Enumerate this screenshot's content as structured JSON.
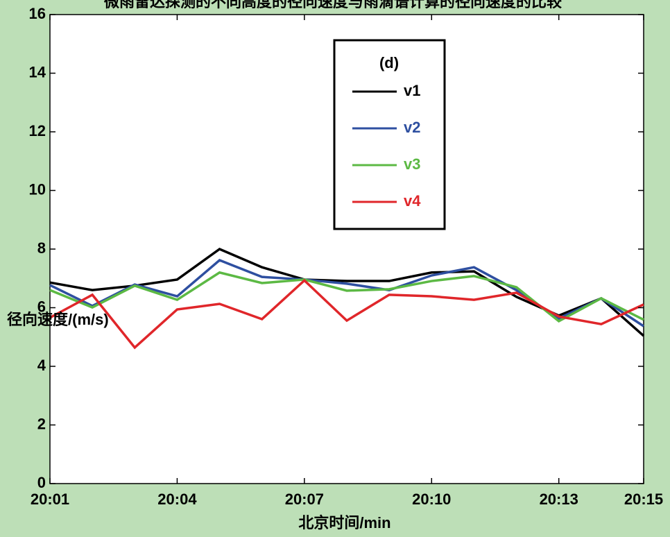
{
  "chart_data": {
    "type": "line",
    "title": "微雨雷达探测的不同高度的径向速度与雨滴谱计算的径向速度的比较",
    "x_label": "北京时间/min",
    "y_label": "径向速度/(m/s)",
    "legend_title": "(d)",
    "categories": [
      "20:01",
      null,
      null,
      "20:04",
      null,
      null,
      "20:07",
      null,
      null,
      "20:10",
      null,
      null,
      "20:13",
      null,
      "20:15"
    ],
    "series": [
      {
        "name": "v1",
        "color": "#000000",
        "values": [
          6.86,
          6.6,
          6.75,
          6.96,
          8.0,
          7.38,
          6.96,
          6.91,
          6.91,
          7.2,
          7.24,
          6.37,
          5.73,
          6.32,
          5.04
        ]
      },
      {
        "name": "v2",
        "color": "#2e4fa0",
        "values": [
          6.77,
          6.06,
          6.79,
          6.39,
          7.62,
          7.05,
          6.96,
          6.82,
          6.6,
          7.1,
          7.38,
          6.6,
          5.63,
          6.32,
          5.37
        ]
      },
      {
        "name": "v3",
        "color": "#5cb944",
        "values": [
          6.6,
          6.01,
          6.75,
          6.27,
          7.2,
          6.84,
          6.96,
          6.58,
          6.63,
          6.91,
          7.08,
          6.7,
          5.54,
          6.32,
          5.59
        ]
      },
      {
        "name": "v4",
        "color": "#e0262a",
        "values": [
          5.66,
          6.44,
          4.64,
          5.94,
          6.13,
          5.61,
          6.93,
          5.56,
          6.44,
          6.39,
          6.27,
          6.51,
          5.7,
          5.44,
          6.11
        ]
      }
    ],
    "ylim": [
      0,
      16
    ],
    "yticks": [
      0,
      2,
      4,
      6,
      8,
      10,
      12,
      14,
      16
    ],
    "grid": false
  }
}
